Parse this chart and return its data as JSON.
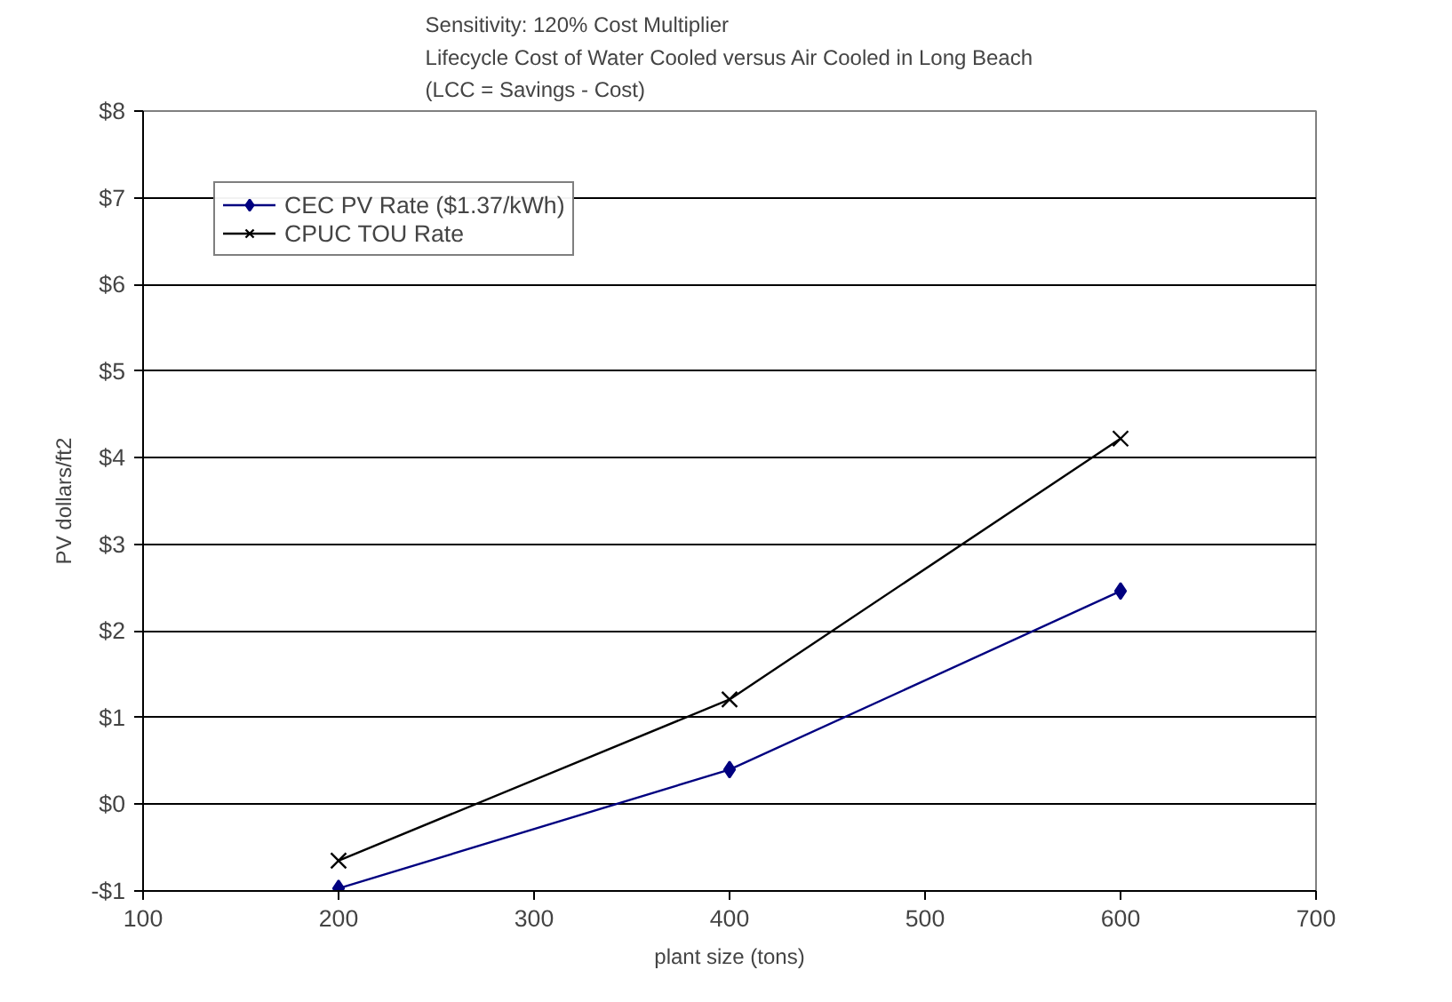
{
  "chart_data": {
    "type": "line",
    "title": "Sensitivity: 120% Cost Multiplier\nLifecycle Cost of Water Cooled versus Air Cooled in Long Beach\n(LCC = Savings - Cost)",
    "xlabel": "plant size (tons)",
    "ylabel": "PV dollars/ft2",
    "x": [
      200,
      400,
      600
    ],
    "series": [
      {
        "name": "CEC PV Rate ($1.37/kWh)",
        "color": "#000080",
        "marker": "diamond",
        "values": [
          -0.97,
          0.4,
          2.46
        ]
      },
      {
        "name": "CPUC TOU Rate",
        "color": "#000000",
        "marker": "cross",
        "values": [
          -0.65,
          1.21,
          4.22
        ]
      }
    ],
    "xlim": [
      100,
      700
    ],
    "xticks": [
      100,
      200,
      300,
      400,
      500,
      600,
      700
    ],
    "ylim": [
      -1,
      8
    ],
    "yticks": [
      {
        "value": -1,
        "label": "-$1"
      },
      {
        "value": 0,
        "label": "$0"
      },
      {
        "value": 1,
        "label": "$1"
      },
      {
        "value": 2,
        "label": "$2"
      },
      {
        "value": 3,
        "label": "$3"
      },
      {
        "value": 4,
        "label": "$4"
      },
      {
        "value": 5,
        "label": "$5"
      },
      {
        "value": 6,
        "label": "$6"
      },
      {
        "value": 7,
        "label": "$7"
      },
      {
        "value": 8,
        "label": "$8"
      }
    ],
    "grid": "y",
    "legend": "top left",
    "line_style": "solid"
  }
}
